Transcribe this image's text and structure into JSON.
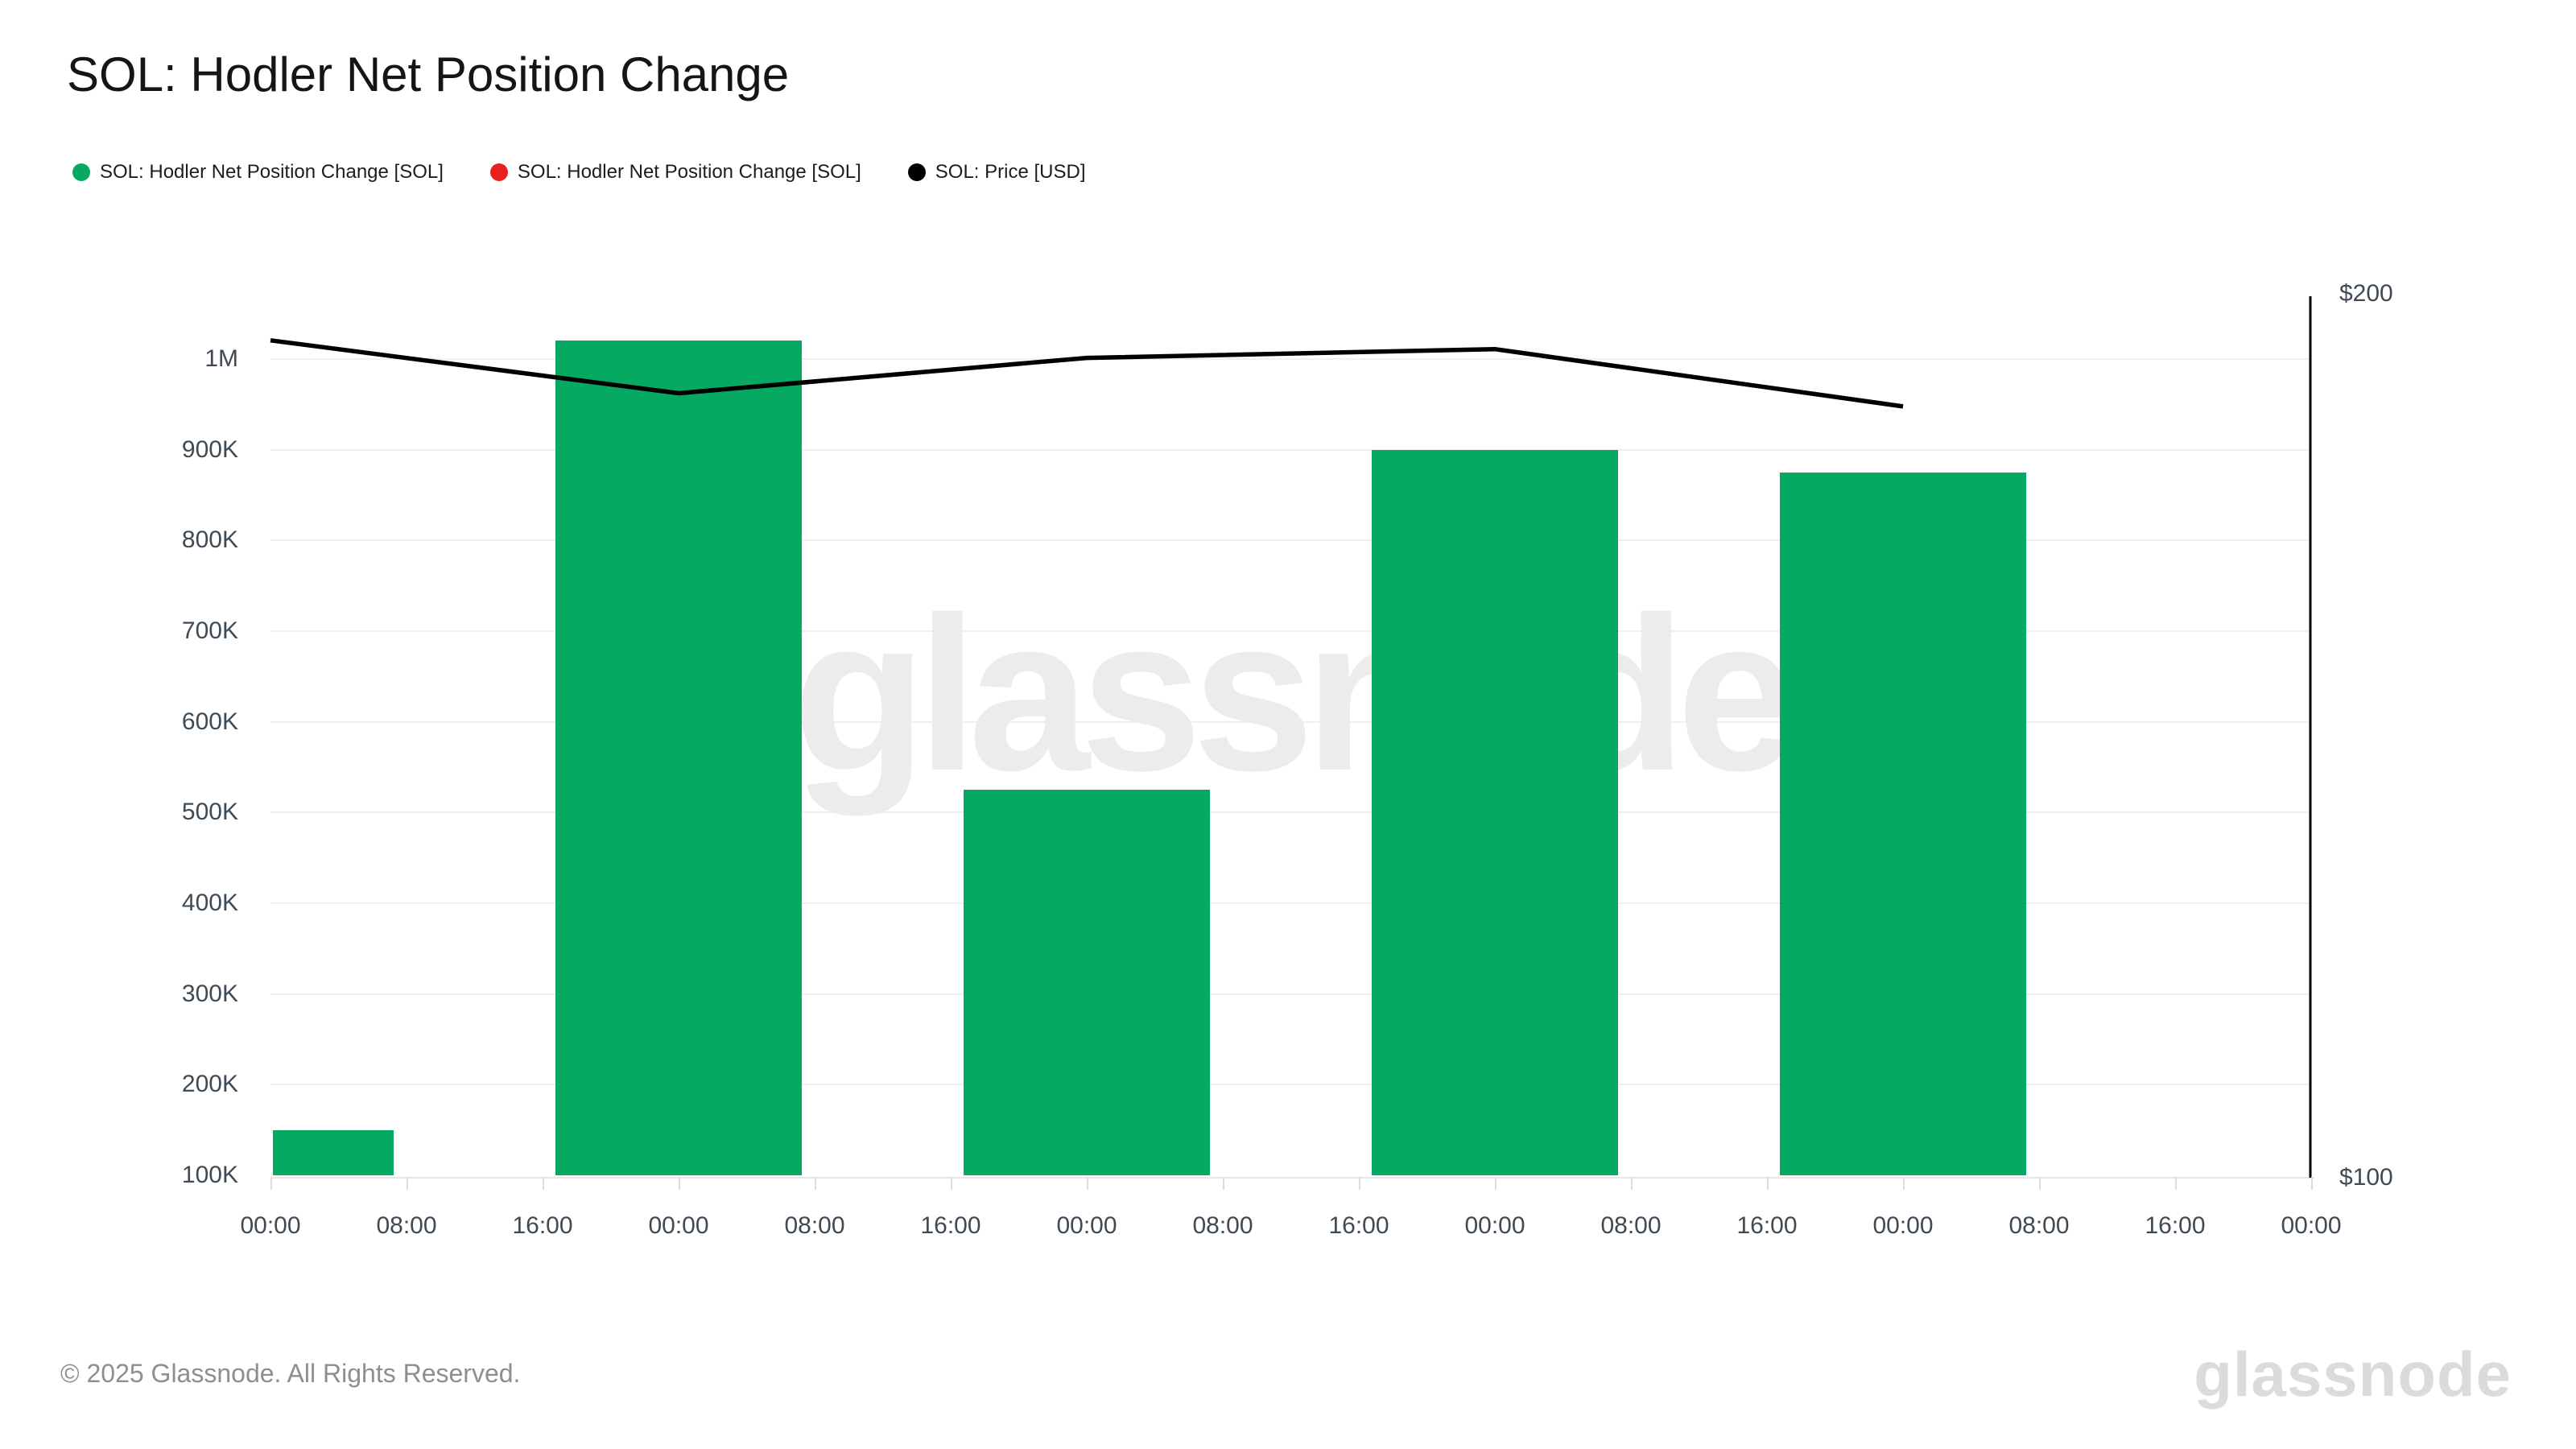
{
  "header": {
    "title": "SOL: Hodler Net Position Change"
  },
  "legend": [
    {
      "label": "SOL: Hodler Net Position Change [SOL]",
      "marker": "circle",
      "color": "#06a961"
    },
    {
      "label": "SOL: Hodler Net Position Change [SOL]",
      "marker": "circle",
      "color": "#ea2020"
    },
    {
      "label": "SOL: Price [USD]",
      "marker": "circle",
      "color": "#000000"
    }
  ],
  "watermark": {
    "text": "glassnode"
  },
  "footer": {
    "copyright": "© 2025 Glassnode. All Rights Reserved.",
    "brand": "glassnode"
  },
  "chart_data": {
    "type": "bar+line",
    "title": "SOL: Hodler Net Position Change",
    "x_tick_labels": [
      "00:00",
      "08:00",
      "16:00",
      "00:00",
      "08:00",
      "16:00",
      "00:00",
      "08:00",
      "16:00",
      "00:00",
      "08:00",
      "16:00",
      "00:00",
      "08:00",
      "16:00",
      "00:00"
    ],
    "x_tick_interval_hours": 8,
    "grid": "horizontal",
    "legend_position": "top-left",
    "left_axis": {
      "tick_labels": [
        "100K",
        "200K",
        "300K",
        "400K",
        "500K",
        "600K",
        "700K",
        "800K",
        "900K",
        "1M"
      ],
      "tick_values": [
        100000,
        200000,
        300000,
        400000,
        500000,
        600000,
        700000,
        800000,
        900000,
        1000000
      ],
      "min": 100000,
      "max": 1075000
    },
    "right_axis": {
      "tick_labels": [
        "$100",
        "$200"
      ],
      "tick_values": [
        100,
        200
      ],
      "min": 100,
      "max": 200
    },
    "series": [
      {
        "name": "SOL: Hodler Net Position Change [SOL]",
        "type": "bar",
        "color": "#06a961",
        "axis": "left",
        "points": [
          {
            "x": 0,
            "value": 150000
          },
          {
            "x": 3,
            "value": 1020000
          },
          {
            "x": 6,
            "value": 525000
          },
          {
            "x": 9,
            "value": 900000
          },
          {
            "x": 12,
            "value": 875000
          }
        ]
      },
      {
        "name": "SOL: Hodler Net Position Change [SOL]",
        "type": "bar",
        "color": "#ea2020",
        "axis": "left",
        "points": []
      },
      {
        "name": "SOL: Price [USD]",
        "type": "line",
        "color": "#000000",
        "axis": "right",
        "points": [
          {
            "x": 0,
            "value": 195
          },
          {
            "x": 3,
            "value": 189
          },
          {
            "x": 6,
            "value": 193
          },
          {
            "x": 9,
            "value": 194
          },
          {
            "x": 12,
            "value": 187.5
          }
        ]
      }
    ]
  }
}
